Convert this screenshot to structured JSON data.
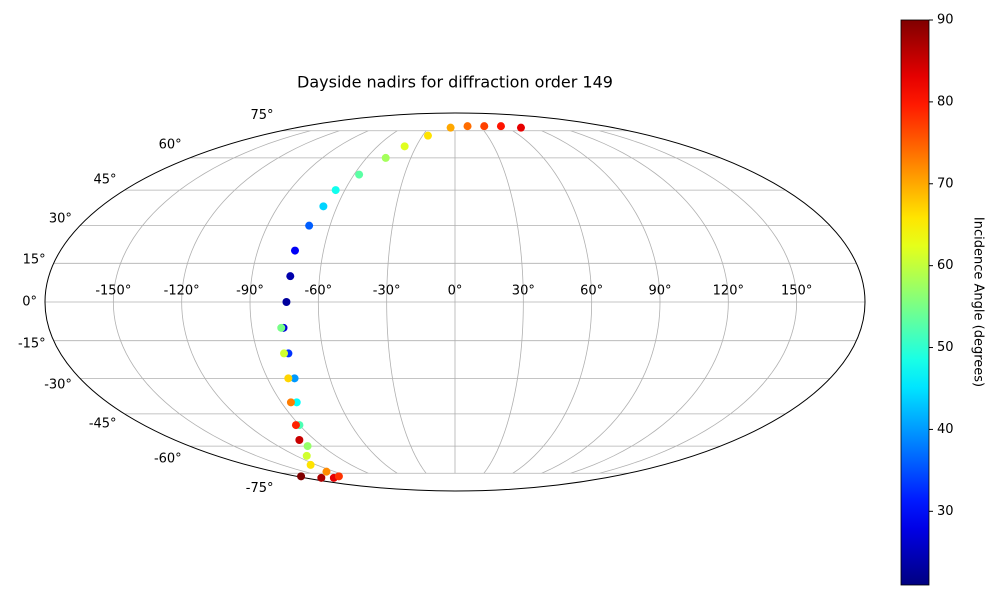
{
  "chart_data": {
    "type": "scatter",
    "projection": "mollweide",
    "title": "Dayside nadirs for diffraction order 149",
    "x": [
      -175,
      -160,
      -145,
      -132,
      -128,
      -125,
      -112,
      -100,
      -90,
      -82,
      -77,
      -76,
      -76,
      -74,
      -73,
      -73,
      -70,
      -67,
      -65,
      -57,
      -47,
      -39,
      -25,
      -5,
      15,
      35,
      55,
      75,
      -77,
      -78,
      -80,
      -85,
      -92,
      -100
    ],
    "y": [
      -77,
      -78,
      -78,
      -77,
      -74,
      -70,
      -65,
      -60,
      -50,
      -40,
      -30,
      -20,
      -10,
      0,
      10,
      20,
      30,
      38,
      45,
      52,
      60,
      66,
      72,
      77,
      78,
      78,
      78,
      77,
      -10,
      -20,
      -30,
      -40,
      -50,
      -57
    ],
    "values": [
      90,
      87,
      83,
      78,
      72,
      66,
      61,
      57,
      52,
      47,
      40,
      33,
      27,
      23,
      24,
      29,
      36,
      44,
      48,
      53,
      58,
      62,
      66,
      70,
      74,
      77,
      80,
      83,
      55,
      61,
      67,
      73,
      79,
      85
    ],
    "xlim": [
      -180,
      180
    ],
    "ylim": [
      -90,
      90
    ],
    "xticks": [
      {
        "value": -150,
        "label": "-150°"
      },
      {
        "value": -120,
        "label": "-120°"
      },
      {
        "value": -90,
        "label": "-90°"
      },
      {
        "value": -60,
        "label": "-60°"
      },
      {
        "value": -30,
        "label": "-30°"
      },
      {
        "value": 0,
        "label": "0°"
      },
      {
        "value": 30,
        "label": "30°"
      },
      {
        "value": 60,
        "label": "60°"
      },
      {
        "value": 90,
        "label": "90°"
      },
      {
        "value": 120,
        "label": "120°"
      },
      {
        "value": 150,
        "label": "150°"
      }
    ],
    "yticks": [
      {
        "value": -75,
        "label": "-75°"
      },
      {
        "value": -60,
        "label": "-60°"
      },
      {
        "value": -45,
        "label": "-45°"
      },
      {
        "value": -30,
        "label": "-30°"
      },
      {
        "value": -15,
        "label": "-15°"
      },
      {
        "value": 0,
        "label": "0°"
      },
      {
        "value": 15,
        "label": "15°"
      },
      {
        "value": 30,
        "label": "30°"
      },
      {
        "value": 45,
        "label": "45°"
      },
      {
        "value": 60,
        "label": "60°"
      },
      {
        "value": 75,
        "label": "75°"
      }
    ],
    "grid": true,
    "colorbar": {
      "label": "Incidence Angle (degrees)",
      "colormap": "jet",
      "lim": [
        21,
        90
      ],
      "ticks": [
        30,
        40,
        50,
        60,
        70,
        80,
        90
      ]
    }
  }
}
